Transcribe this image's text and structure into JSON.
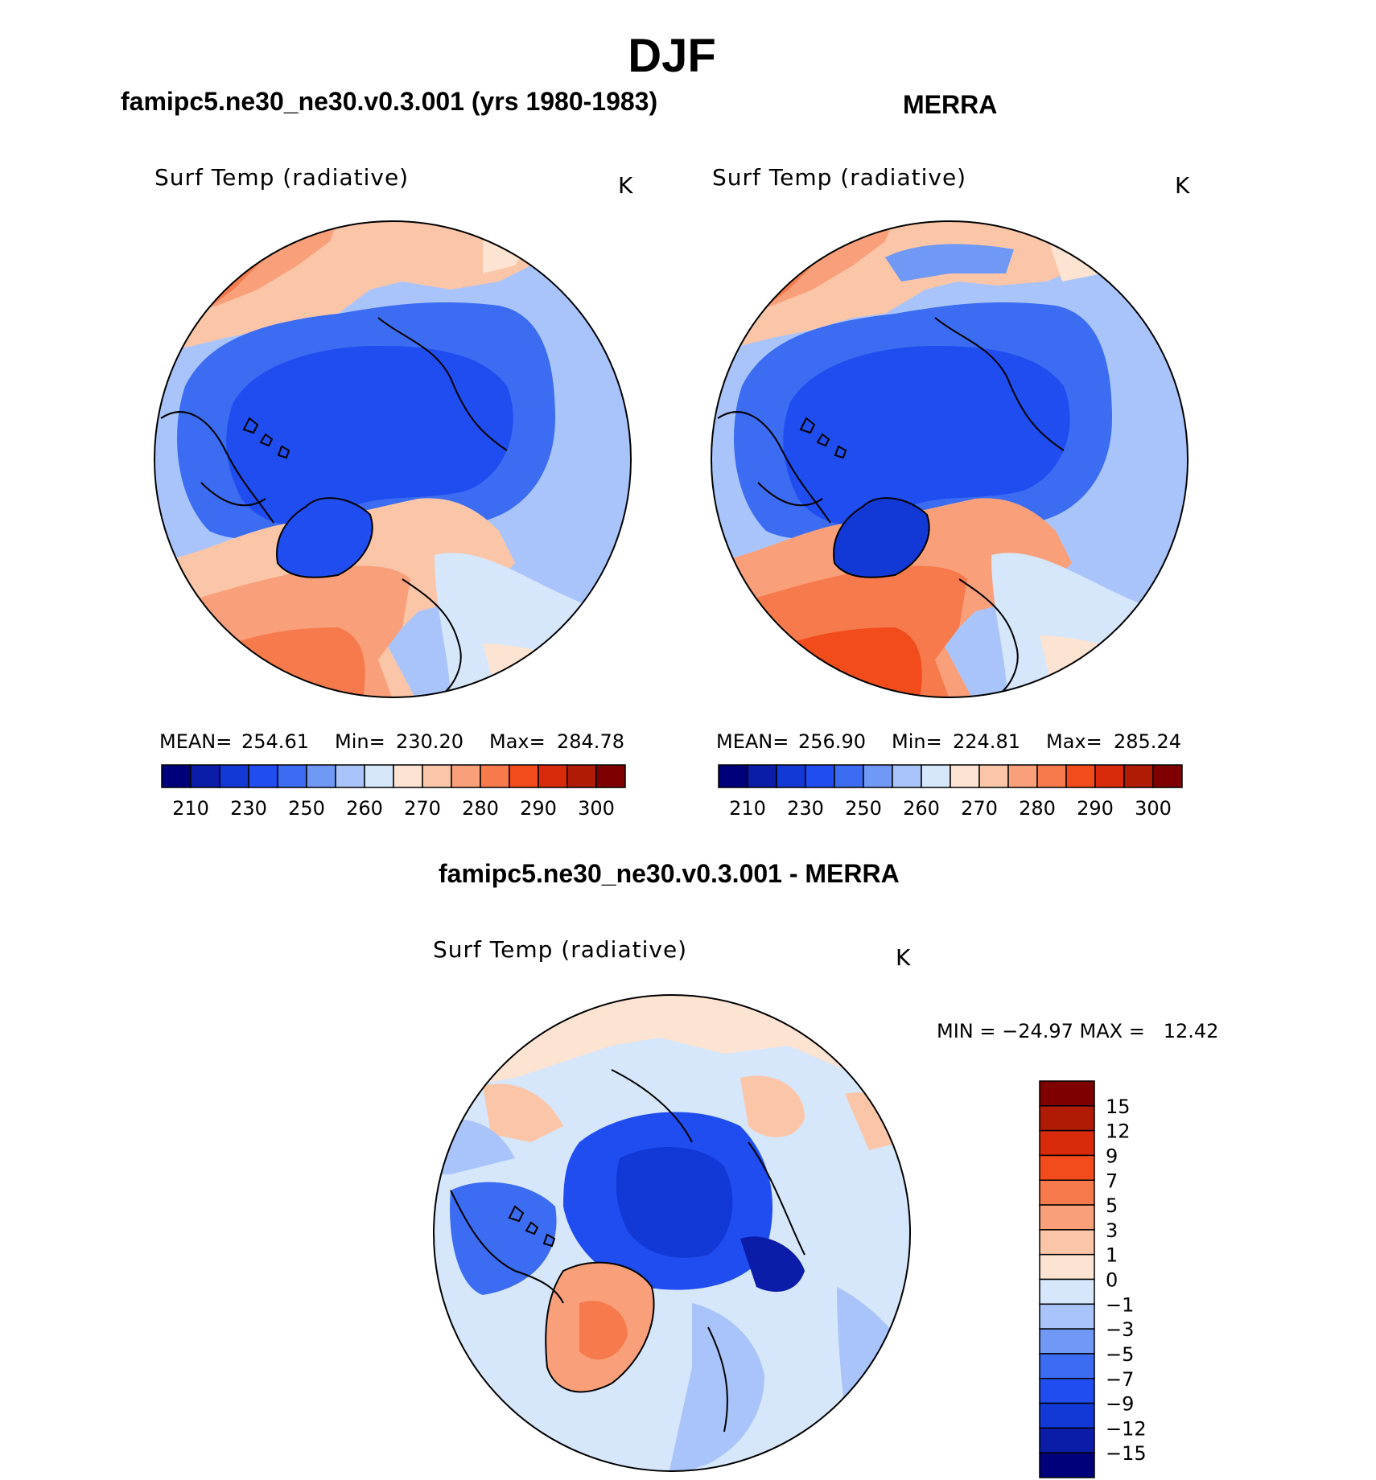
{
  "title": "DJF",
  "panels": [
    {
      "heading": "famipc5.ne30_ne30.v0.3.001 (yrs 1980-1983)",
      "variable": "Surf Temp (radiative)",
      "units": "K",
      "stats": {
        "mean_label": "MEAN=",
        "mean": "254.61",
        "min_label": "Min=",
        "min": "230.20",
        "max_label": "Max=",
        "max": "284.78"
      }
    },
    {
      "heading": "MERRA",
      "variable": "Surf Temp (radiative)",
      "units": "K",
      "stats": {
        "mean_label": "MEAN=",
        "mean": "256.90",
        "min_label": "Min=",
        "min": "224.81",
        "max_label": "Max=",
        "max": "285.24"
      }
    },
    {
      "heading": "famipc5.ne30_ne30.v0.3.001 - MERRA",
      "variable": "Surf Temp (radiative)",
      "units": "K",
      "minmax": "MIN = −24.97 MAX =   12.42"
    }
  ],
  "colorbar_abs": {
    "ticks": [
      "210",
      "230",
      "250",
      "260",
      "270",
      "280",
      "290",
      "300"
    ],
    "colors": [
      "#00007a",
      "#0a1ca8",
      "#1238d6",
      "#1f4df0",
      "#3b6cf2",
      "#7098f5",
      "#a9c4fa",
      "#d6e6fb",
      "#fde3d2",
      "#fbc6a8",
      "#f9a07a",
      "#f67a4c",
      "#f24c1d",
      "#d92b0b",
      "#b01b06",
      "#7e0000"
    ]
  },
  "colorbar_diff": {
    "ticks": [
      "15",
      "12",
      "9",
      "7",
      "5",
      "3",
      "1",
      "0",
      "−1",
      "−3",
      "−5",
      "−7",
      "−9",
      "−12",
      "−15"
    ],
    "colors": [
      "#7e0000",
      "#b01b06",
      "#d92b0b",
      "#f24c1d",
      "#f67a4c",
      "#f9a07a",
      "#fbc6a8",
      "#fde3d2",
      "#d6e6fb",
      "#a9c4fa",
      "#7098f5",
      "#3b6cf2",
      "#1f4df0",
      "#1238d6",
      "#0a1ca8",
      "#00007a"
    ]
  }
}
